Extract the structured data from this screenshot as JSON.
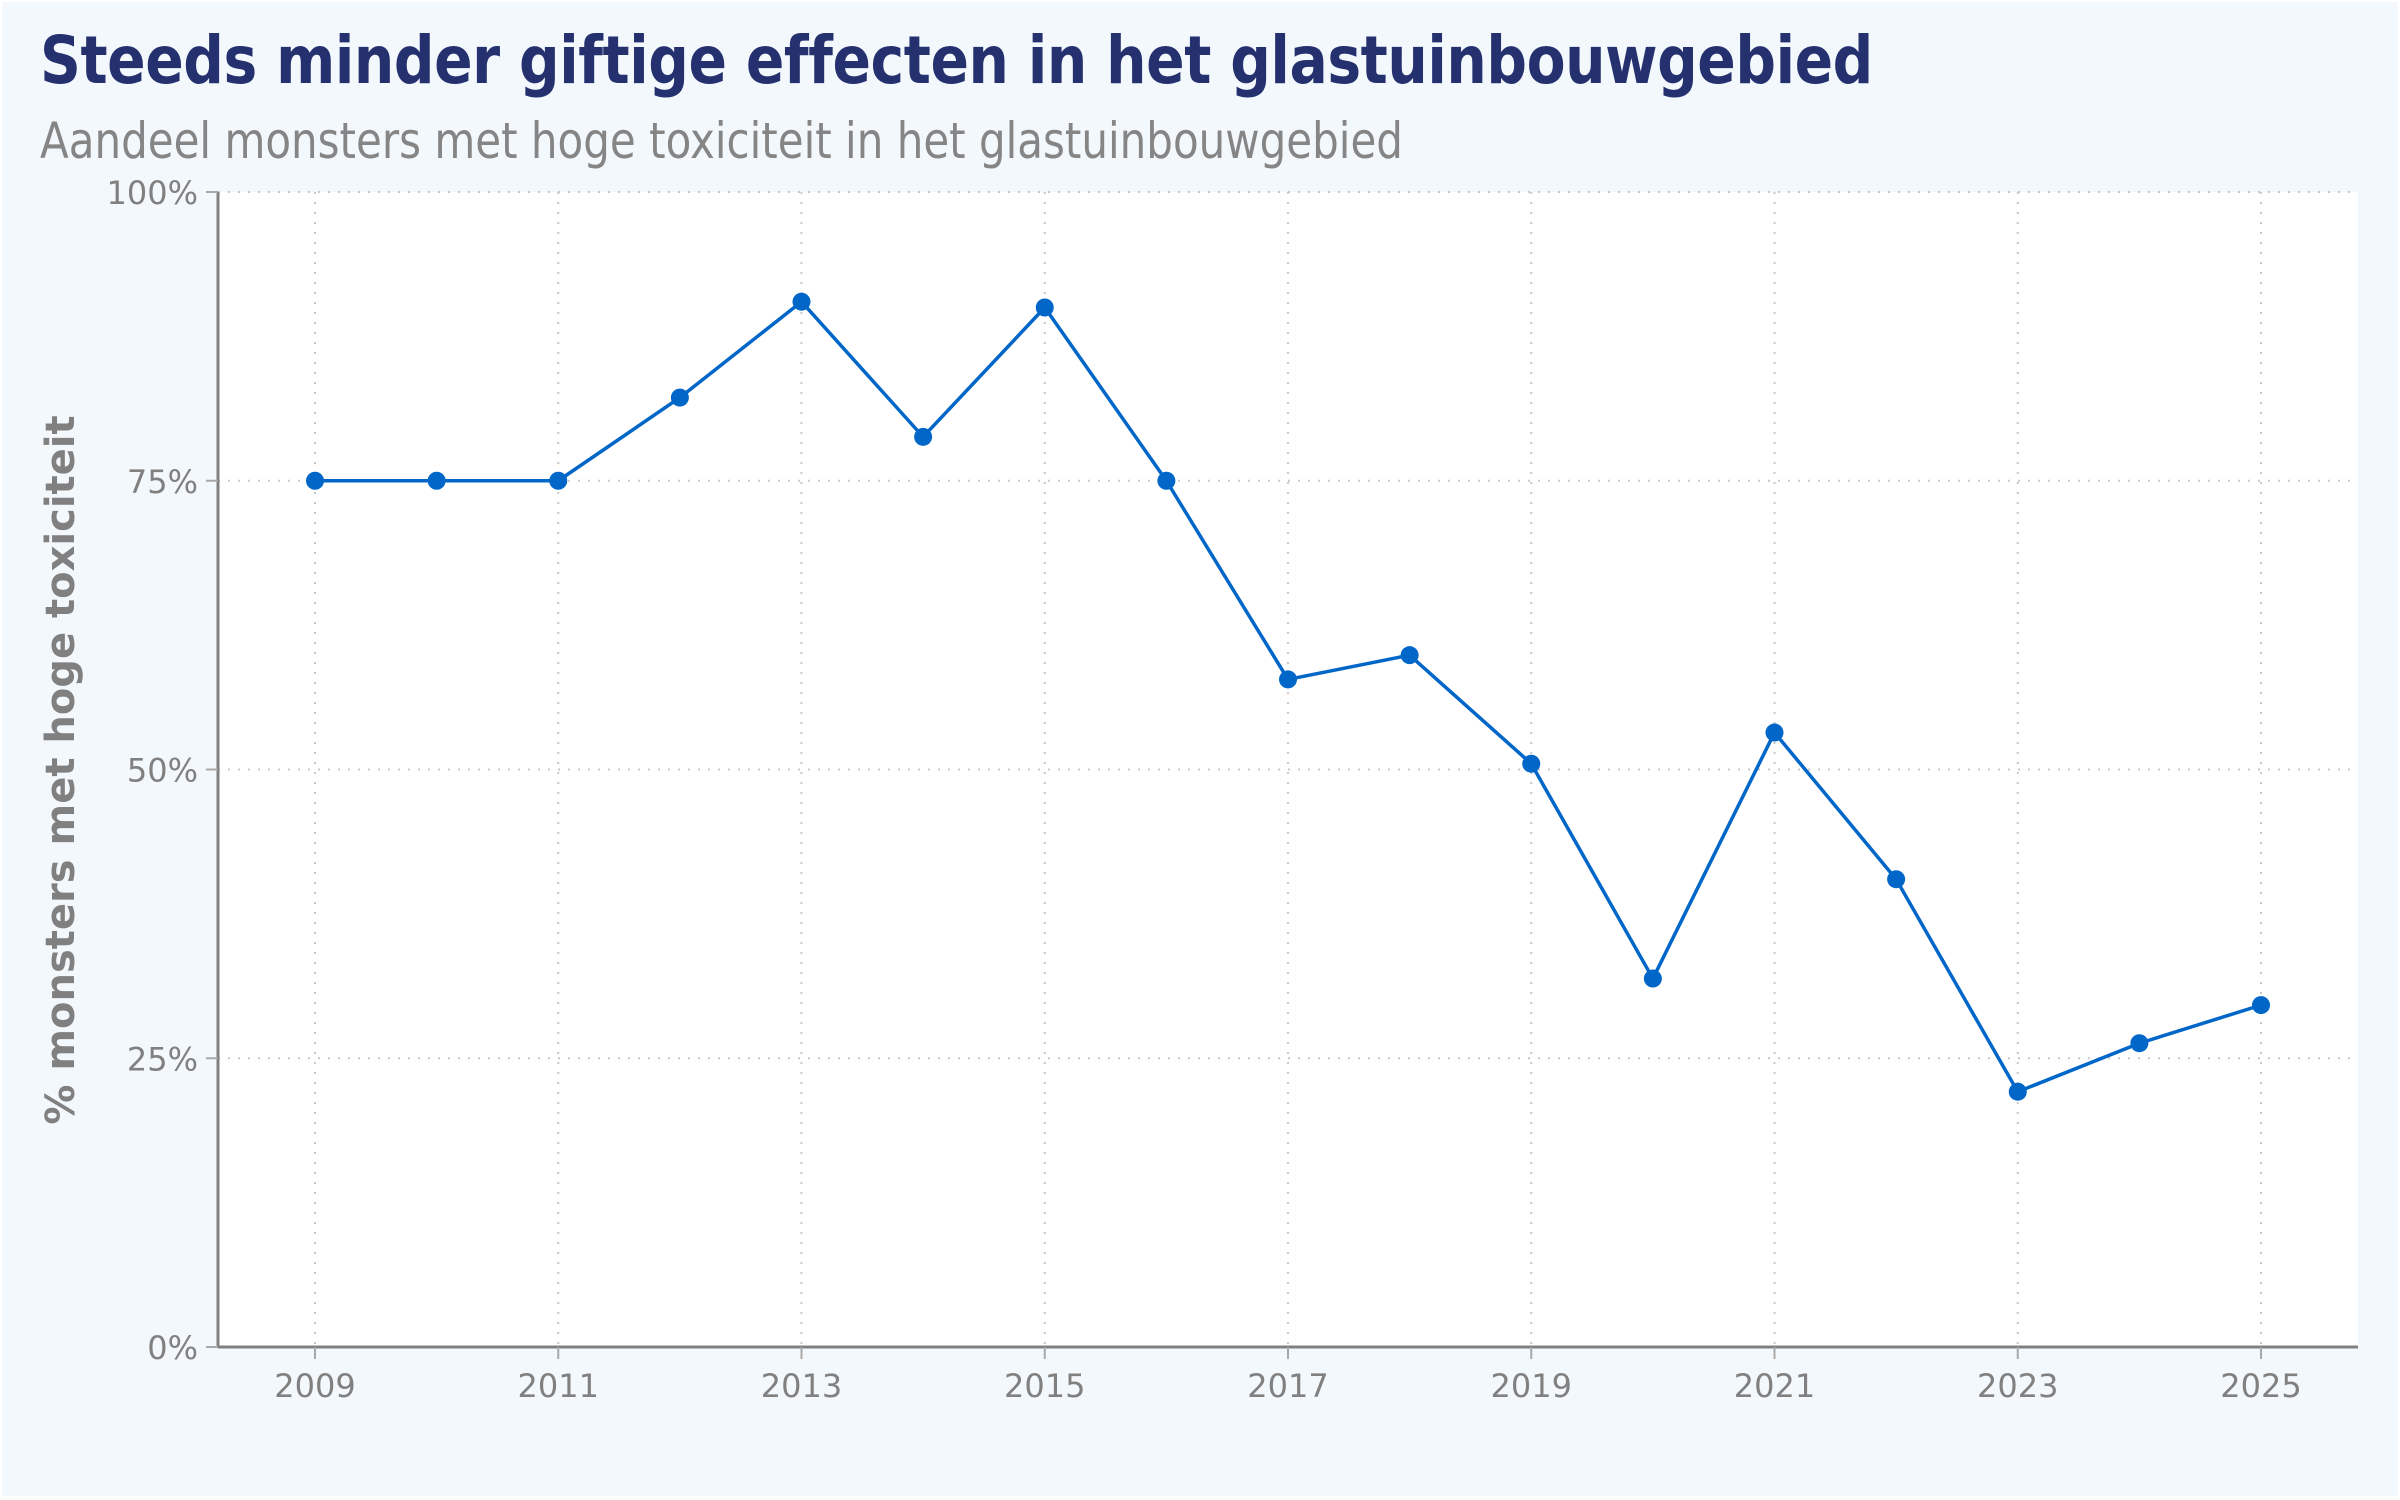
{
  "header": {
    "title": "Steeds minder giftige effecten in het glastuinbouwgebied",
    "subtitle": "Aandeel monsters met hoge toxiciteit in het glastuinbouwgebied"
  },
  "colors": {
    "background": "#f3f8fd",
    "plot_background": "#ffffff",
    "title": "#25306e",
    "subtitle": "#858585",
    "axis": "#808080",
    "grid": "#c8c8c8",
    "series": "#0066c8"
  },
  "chart_data": {
    "type": "line",
    "title": "Steeds minder giftige effecten in het glastuinbouwgebied",
    "subtitle": "Aandeel monsters met hoge toxiciteit in het glastuinbouwgebied",
    "xlabel": "",
    "ylabel": "% monsters met hoge toxiciteit",
    "x": [
      2009,
      2010,
      2011,
      2012,
      2013,
      2014,
      2015,
      2016,
      2017,
      2018,
      2019,
      2020,
      2021,
      2022,
      2023,
      2024,
      2025
    ],
    "series": [
      {
        "name": "% monsters met hoge toxiciteit",
        "values": [
          75.0,
          75.0,
          75.0,
          82.2,
          90.5,
          78.8,
          90.0,
          75.0,
          57.8,
          59.9,
          50.5,
          31.9,
          53.2,
          40.5,
          22.1,
          26.3,
          29.6
        ],
        "markers": true
      }
    ],
    "ylim": [
      0,
      100
    ],
    "xlim": [
      2008.2,
      2025.8
    ],
    "y_ticks": [
      0,
      25,
      50,
      75,
      100
    ],
    "y_tick_labels": [
      "0%",
      "25%",
      "50%",
      "75%",
      "100%"
    ],
    "x_ticks": [
      2009,
      2011,
      2013,
      2015,
      2017,
      2019,
      2021,
      2023,
      2025
    ],
    "x_tick_labels": [
      "2009",
      "2011",
      "2013",
      "2015",
      "2017",
      "2019",
      "2021",
      "2023",
      "2025"
    ],
    "grid": {
      "x": true,
      "y": true,
      "style": "dotted"
    },
    "legend": "none"
  }
}
